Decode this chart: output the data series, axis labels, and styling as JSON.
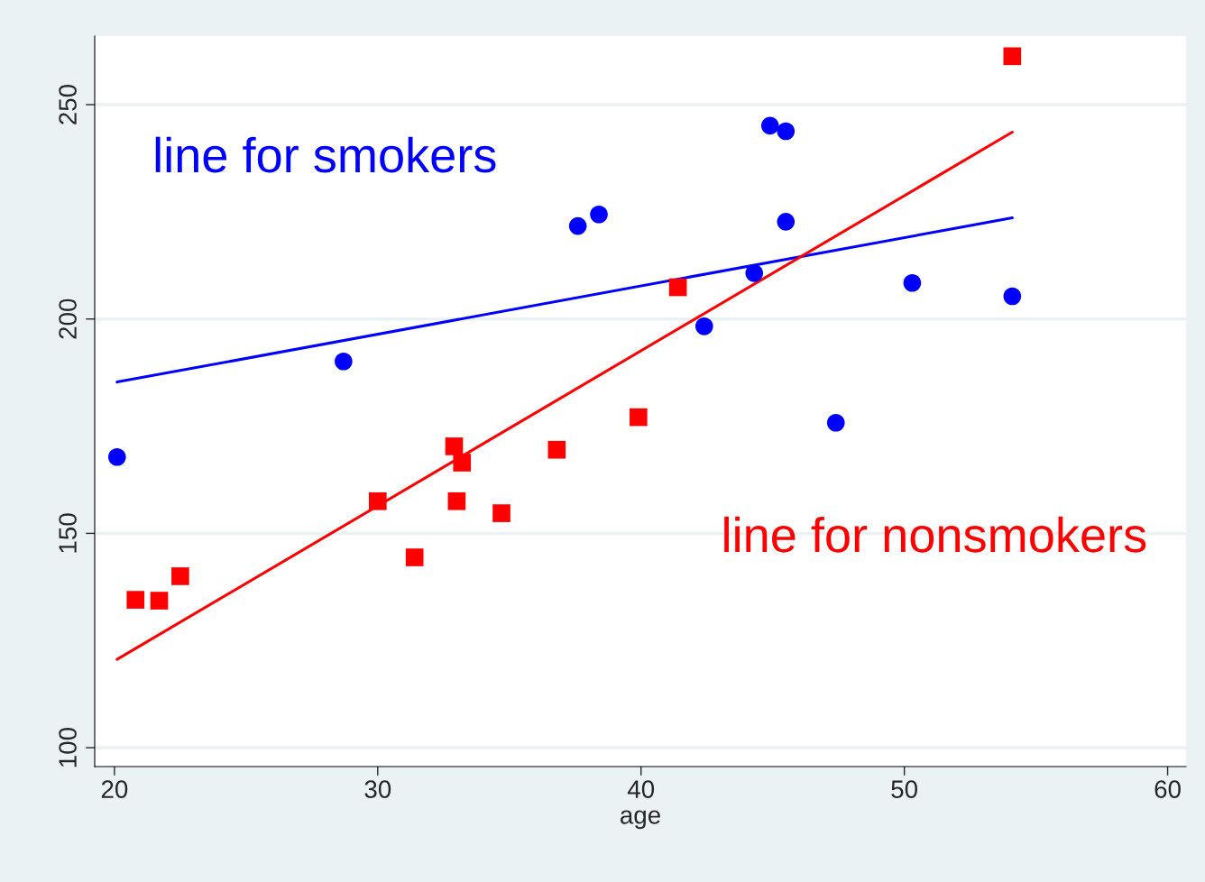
{
  "chart_data": {
    "type": "scatter",
    "xlabel": "age",
    "xlim": [
      19.25,
      60.7
    ],
    "ylim": [
      95.6,
      266
    ],
    "xticks": [
      20,
      30,
      40,
      50,
      60
    ],
    "yticks": [
      100,
      150,
      200,
      250
    ],
    "grid": "y",
    "legend": false,
    "series": [
      {
        "marker": "circle",
        "color": "#0000ff",
        "x": [
          20.1,
          28.7,
          37.6,
          38.4,
          42.4,
          44.3,
          44.9,
          45.5,
          45.5,
          47.4,
          50.3,
          54.1
        ],
        "values": [
          167.8,
          190.1,
          221.7,
          224.4,
          198.3,
          210.7,
          245.1,
          243.8,
          222.7,
          175.8,
          208.4,
          205.3
        ]
      },
      {
        "marker": "square",
        "color": "#ff0000",
        "x": [
          20.8,
          21.7,
          22.5,
          30.0,
          31.4,
          32.9,
          33.0,
          33.2,
          34.7,
          36.8,
          39.9,
          41.4,
          54.1
        ],
        "values": [
          134.5,
          134.3,
          140.0,
          157.5,
          144.4,
          170.3,
          157.5,
          166.5,
          154.7,
          169.5,
          177.1,
          207.4,
          261.3
        ]
      },
      {
        "type": "line",
        "color": "#0000ff",
        "x": [
          20.1,
          54.1
        ],
        "values": [
          185.3,
          223.6
        ]
      },
      {
        "type": "line",
        "color": "#ff0000",
        "x": [
          20.1,
          54.1
        ],
        "values": [
          120.6,
          243.6
        ]
      }
    ],
    "annotations": [
      "line for smokers",
      "line for nonsmokers"
    ]
  }
}
